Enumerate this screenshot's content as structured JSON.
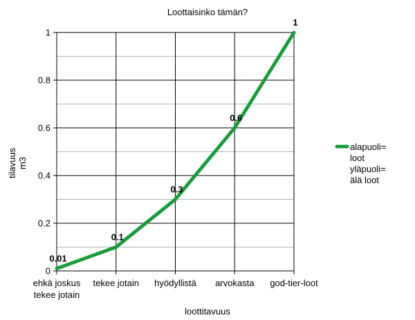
{
  "chart_data": {
    "type": "line",
    "title": "Loottaisinko tämän?",
    "xlabel": "loottitavuus",
    "ylabel_lines": [
      "tilavuus",
      "m3"
    ],
    "categories": [
      [
        "ehkä joskus",
        "tekee jotain"
      ],
      [
        "tekee jotain"
      ],
      [
        "hyödyllistä"
      ],
      [
        "arvokasta"
      ],
      [
        "god-tier-loot"
      ]
    ],
    "series": [
      {
        "name_lines": [
          "alapuoli=",
          "loot",
          "yläpuoli=",
          "älä loot"
        ],
        "values": [
          0.01,
          0.1,
          0.3,
          0.6,
          1
        ],
        "data_labels": [
          "0.01",
          "0.1",
          "0.3",
          "0.6",
          "1"
        ],
        "color": "#1a9c3c"
      }
    ],
    "ylim": [
      0,
      1
    ],
    "yticks": [
      0,
      0.2,
      0.4,
      0.6,
      0.8,
      1
    ],
    "ytick_labels": [
      "0",
      "0.2",
      "0.4",
      "0.6",
      "0.8",
      "1"
    ],
    "grid": true,
    "legend_position": "right"
  }
}
